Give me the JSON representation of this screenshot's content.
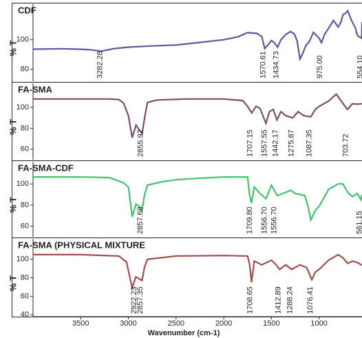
{
  "chart_data": [
    {
      "type": "line",
      "title": "CDF",
      "ylabel": "% T",
      "color": "#5a56a0",
      "xlim": [
        4000,
        550
      ],
      "ylim": [
        72,
        124
      ],
      "yticks": [
        80,
        100
      ],
      "x": [
        4000,
        3700,
        3500,
        3400,
        3282.28,
        3150,
        3000,
        2750,
        2500,
        2250,
        2000,
        1850,
        1750,
        1650,
        1600,
        1570.61,
        1530,
        1500,
        1470,
        1434.73,
        1400,
        1350,
        1300,
        1260,
        1230,
        1200,
        1170,
        1140,
        1100,
        1060,
        1030,
        1000,
        975,
        940,
        900,
        850,
        800,
        770,
        750,
        720,
        700,
        660,
        620,
        600,
        580,
        554.1,
        550
      ],
      "values": [
        93.6,
        93.9,
        93.6,
        93.2,
        92.3,
        94,
        95,
        95.8,
        96.4,
        98.2,
        100,
        102,
        104.8,
        104.2,
        102,
        94,
        97,
        99.5,
        98,
        95,
        100,
        103.5,
        105.5,
        104,
        99,
        87,
        91,
        96,
        99,
        105,
        103,
        101,
        98,
        104,
        107.7,
        113,
        108.6,
        112,
        116.8,
        118,
        119.5,
        113,
        108,
        103,
        102,
        101,
        112
      ]
    },
    {
      "type": "line",
      "title": "FA-SMA",
      "ylabel": "% T",
      "color": "#7a4d6e",
      "xlim": [
        4000,
        550
      ],
      "ylim": [
        50,
        123
      ],
      "yticks": [
        60,
        80,
        100
      ],
      "x": [
        4000,
        3500,
        3200,
        3100,
        3050,
        3000,
        2960,
        2920,
        2890,
        2855.92,
        2830,
        2800,
        2700,
        2400,
        2000,
        1800,
        1750,
        1707.15,
        1660,
        1620,
        1557.55,
        1520,
        1480,
        1442.17,
        1400,
        1350,
        1275.87,
        1220,
        1160,
        1087.35,
        1040,
        1000,
        900,
        820,
        760,
        703.72,
        650,
        600,
        550
      ],
      "values": [
        108,
        108,
        108,
        107.5,
        104,
        92,
        71,
        83,
        79,
        75,
        90,
        104.7,
        107,
        108,
        108,
        106.5,
        101,
        94.7,
        101,
        99,
        84.7,
        96,
        98,
        88,
        96,
        92,
        90,
        96,
        92,
        91,
        98,
        101,
        106,
        112.7,
        105,
        98,
        103.5,
        103,
        103.5
      ]
    },
    {
      "type": "line",
      "title": "FA-SMA-CDF",
      "ylabel": "% T",
      "color": "#3fc46b",
      "xlim": [
        4000,
        550
      ],
      "ylim": [
        50,
        121
      ],
      "yticks": [
        60,
        80,
        100
      ],
      "x": [
        4000,
        3500,
        3200,
        3050,
        3000,
        2960,
        2920,
        2890,
        2857.68,
        2830,
        2800,
        2650,
        2500,
        2250,
        2000,
        1750,
        1730,
        1709.8,
        1680,
        1620,
        1556.7,
        1500,
        1440,
        1380,
        1300,
        1250,
        1150,
        1120,
        1087,
        1040,
        1000,
        900,
        800,
        750,
        700,
        650,
        600,
        561.15,
        550
      ],
      "values": [
        106.6,
        106.6,
        106,
        101,
        97,
        69,
        81,
        79,
        75,
        90,
        99,
        102,
        104,
        105.5,
        106.6,
        106.6,
        90,
        82,
        97,
        91,
        86,
        99,
        89,
        91,
        94,
        91,
        89,
        80,
        66,
        75,
        79,
        95,
        100,
        100,
        92,
        88,
        91,
        85,
        90
      ]
    },
    {
      "type": "line",
      "title": "FA-SMA (PHYSICAL MIXTURE",
      "ylabel": "% T",
      "xlabel": "Wavenumber (cm-1)",
      "color": "#a24c4c",
      "xlim": [
        4000,
        550
      ],
      "ylim": [
        38,
        122
      ],
      "yticks": [
        40,
        60,
        80,
        100
      ],
      "xticks": [
        3500,
        3000,
        2500,
        2000,
        1500,
        1000
      ],
      "x": [
        4000,
        3500,
        3100,
        3020,
        2960,
        2922.23,
        2890,
        2857.35,
        2830,
        2800,
        2500,
        2000,
        1750,
        1730,
        1708.65,
        1680,
        1600,
        1560,
        1500,
        1450,
        1412.89,
        1350,
        1288.24,
        1200,
        1130,
        1076.41,
        1040,
        1000,
        900,
        800,
        750,
        700,
        650,
        600,
        550
      ],
      "values": [
        105,
        105,
        103.5,
        97,
        69,
        81,
        79,
        77,
        92,
        100,
        103.5,
        104,
        103.5,
        95,
        75,
        98,
        94,
        96,
        99,
        94,
        89,
        94,
        89,
        94,
        91,
        78,
        86,
        89,
        99,
        105,
        101.5,
        95.5,
        98,
        96.5,
        93.5
      ]
    }
  ],
  "annotations": [
    [
      "3282.28",
      "1570.61",
      "1434.73",
      "975.00",
      "554.10"
    ],
    [
      "2855.92",
      "1707.15",
      "1557.55",
      "1442.17",
      "1275.87",
      "1087.35",
      "703.72"
    ],
    [
      "2857.68",
      "1709.80",
      "1556.70",
      "1556.70",
      "561.15"
    ],
    [
      "2922.23",
      "2857.35",
      "1708.65",
      "1412.89",
      "1288.24",
      "1076.41"
    ]
  ]
}
